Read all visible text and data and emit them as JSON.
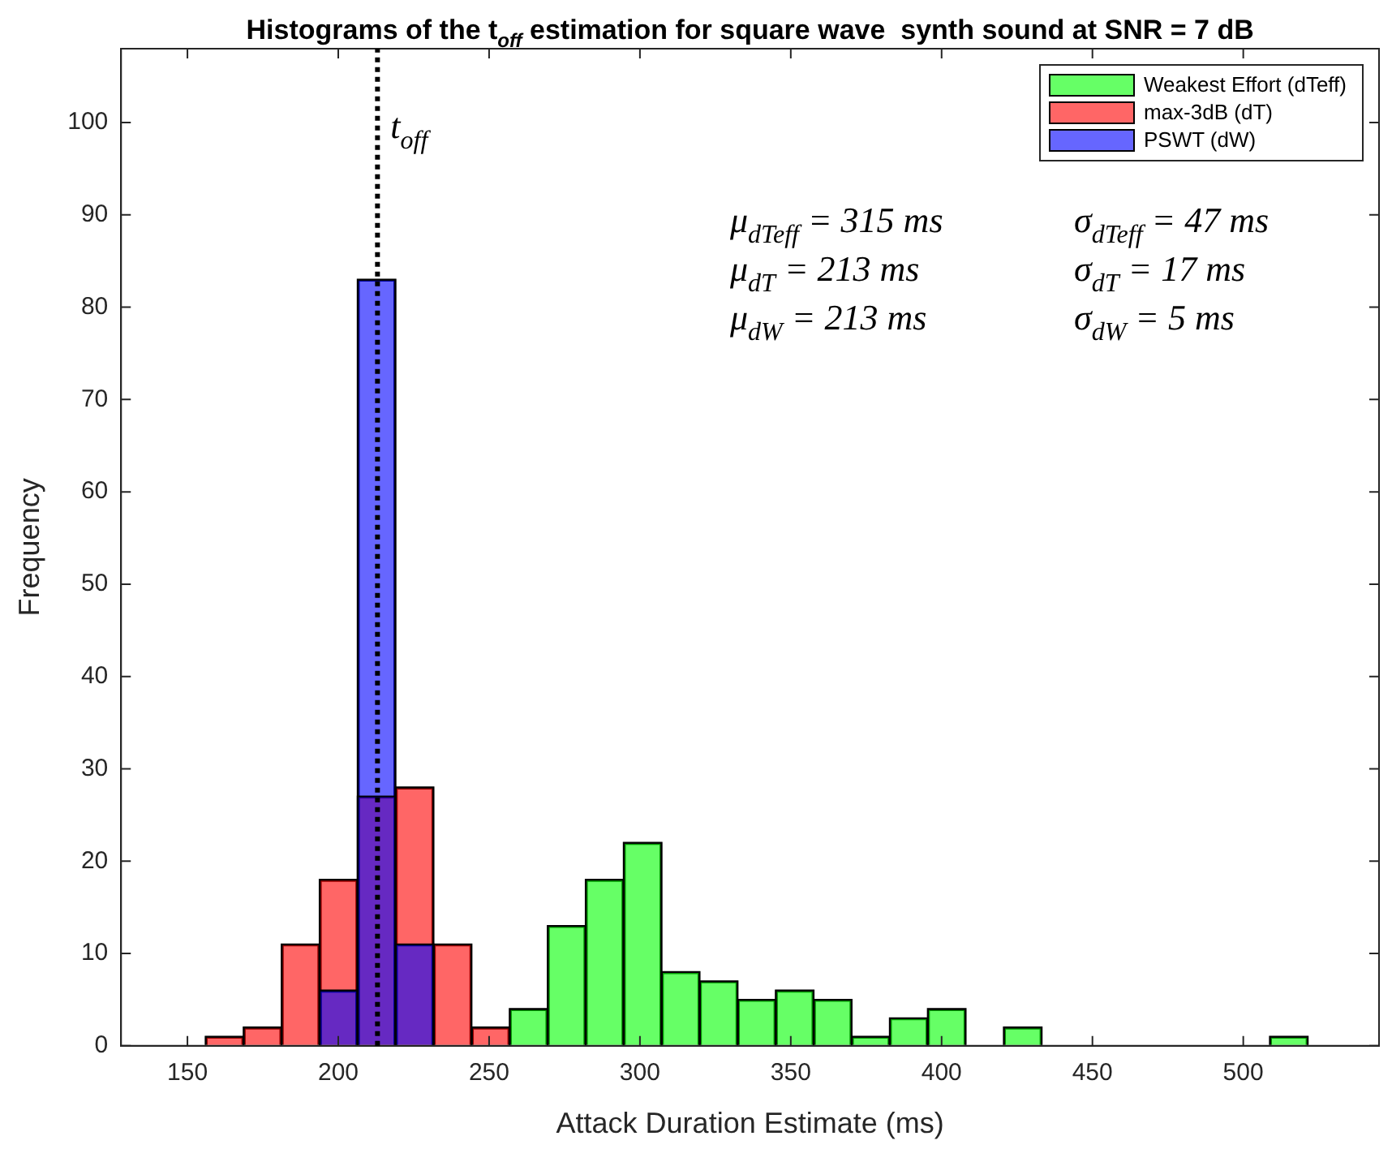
{
  "chart_data": {
    "type": "histogram",
    "title": "Histograms of the t$_{off}$ estimation for square wave  synth sound at SNR = 7 dB",
    "xlabel": "Attack Duration Estimate (ms)",
    "ylabel": "Frequency",
    "bins": [
      156,
      168.6,
      181.2,
      193.8,
      206.4,
      219,
      231.6,
      244.2,
      256.8,
      269.4,
      282,
      294.6,
      307.2,
      319.8,
      332.4,
      345,
      357.6,
      370.2,
      382.8,
      395.4,
      408,
      420.6,
      433.2,
      445.8,
      458.4,
      471,
      483.6,
      496.2,
      508.8,
      521.4
    ],
    "series": [
      {
        "name": "Weakest Effort (dTeff)",
        "color": "#66ff66",
        "values": [
          0,
          0,
          0,
          0,
          0,
          0,
          0,
          0,
          4,
          13,
          18,
          22,
          8,
          7,
          5,
          6,
          5,
          1,
          3,
          4,
          0,
          2,
          0,
          0,
          0,
          0,
          0,
          0,
          1
        ]
      },
      {
        "name": "max-3dB (dT)",
        "color": "#ff6666",
        "values": [
          1,
          2,
          11,
          18,
          27,
          28,
          11,
          2,
          0,
          0,
          0,
          0,
          0,
          0,
          0,
          0,
          0,
          0,
          0,
          0,
          0,
          0,
          0,
          0,
          0,
          0,
          0,
          0,
          0
        ]
      },
      {
        "name": "PSWT (dW)",
        "color": "#6666ff",
        "values": [
          0,
          0,
          0,
          6,
          83,
          11,
          0,
          0,
          0,
          0,
          0,
          0,
          0,
          0,
          0,
          0,
          0,
          0,
          0,
          0,
          0,
          0,
          0,
          0,
          0,
          0,
          0,
          0,
          0
        ]
      }
    ],
    "xlim": [
      128,
      545
    ],
    "xticks": [
      150,
      200,
      250,
      300,
      350,
      400,
      450,
      500
    ],
    "ylim": [
      0,
      108
    ],
    "yticks": [
      0,
      10,
      20,
      30,
      40,
      50,
      60,
      70,
      80,
      90,
      100
    ],
    "grid": false,
    "legend": "top right",
    "ref_lines": [
      {
        "axis": "x",
        "value": 213,
        "label": "t$_{off}$",
        "line_style": "dotted",
        "color": "#000000"
      }
    ],
    "annotations": [
      "μ$_{dTeff}$ = 315 ms",
      "σ$_{dTeff}$ = 47 ms",
      "μ$_{dT}$ = 213 ms",
      "σ$_{dT}$ = 17 ms",
      "μ$_{dW}$ = 213 ms",
      "σ$_{dW}$ = 5 ms"
    ]
  }
}
